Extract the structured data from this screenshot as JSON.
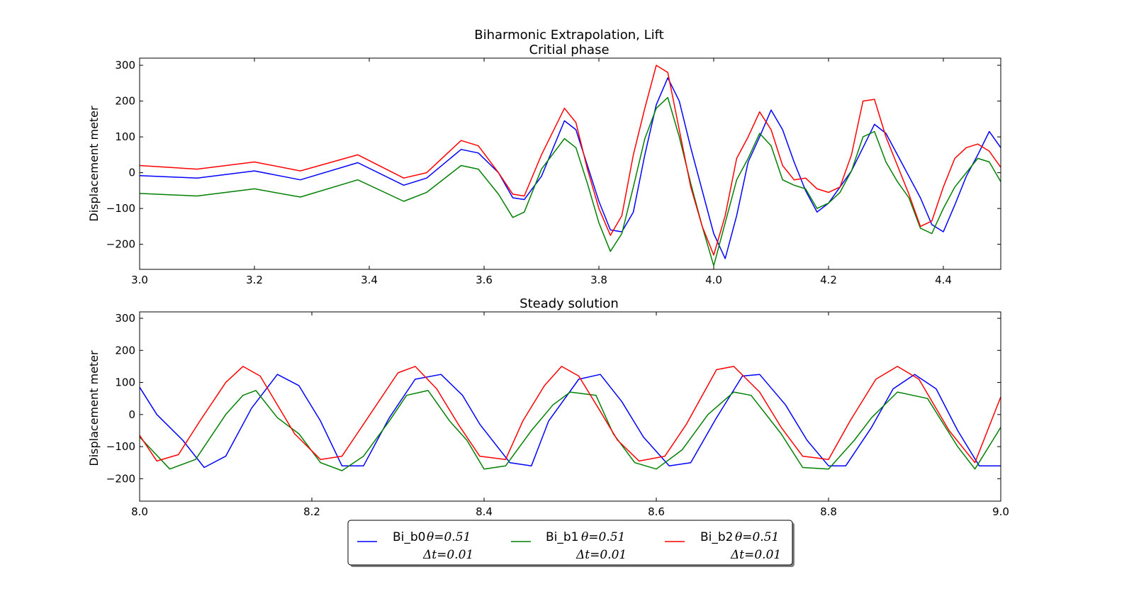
{
  "suptitle": "Biharmonic Extrapolation, Lift",
  "colors": {
    "Bi_b0": "#0000ff",
    "Bi_b1": "#008000",
    "Bi_b2": "#ff0000"
  },
  "legend": {
    "placement": "bottom-center",
    "entries": [
      {
        "label": "Bi_b0",
        "math": "θ=0.51",
        "dt": "Δt=0.01"
      },
      {
        "label": "Bi_b1",
        "math": "θ=0.51",
        "dt": "Δt=0.01"
      },
      {
        "label": "Bi_b2",
        "math": "θ=0.51",
        "dt": "Δt=0.01"
      }
    ]
  },
  "chart_data": [
    {
      "type": "line",
      "title": "Critial phase",
      "xlabel": "",
      "ylabel": "Displacement meter",
      "xlim": [
        3.0,
        4.5
      ],
      "ylim": [
        -270,
        320
      ],
      "xticks": [
        "3.0",
        "3.2",
        "3.4",
        "3.6",
        "3.8",
        "4.0",
        "4.2",
        "4.4"
      ],
      "yticks": [
        "300",
        "200",
        "100",
        "0",
        "−100",
        "−200"
      ],
      "grid": false,
      "series": [
        {
          "name": "Bi_b0",
          "x": [
            3.0,
            3.1,
            3.2,
            3.28,
            3.38,
            3.46,
            3.5,
            3.56,
            3.59,
            3.625,
            3.65,
            3.67,
            3.7,
            3.74,
            3.76,
            3.78,
            3.8,
            3.82,
            3.84,
            3.86,
            3.88,
            3.9,
            3.92,
            3.94,
            3.96,
            3.98,
            4.0,
            4.02,
            4.04,
            4.06,
            4.08,
            4.1,
            4.12,
            4.14,
            4.16,
            4.18,
            4.2,
            4.22,
            4.24,
            4.26,
            4.28,
            4.3,
            4.32,
            4.34,
            4.36,
            4.38,
            4.4,
            4.42,
            4.44,
            4.46,
            4.48,
            4.5
          ],
          "y": [
            -8,
            -15,
            5,
            -20,
            28,
            -35,
            -15,
            65,
            55,
            0,
            -70,
            -75,
            -10,
            145,
            120,
            20,
            -80,
            -160,
            -165,
            -110,
            50,
            190,
            265,
            200,
            70,
            -50,
            -170,
            -240,
            -120,
            30,
            100,
            175,
            120,
            30,
            -50,
            -110,
            -85,
            -40,
            5,
            70,
            135,
            110,
            50,
            -10,
            -70,
            -145,
            -165,
            -90,
            -10,
            50,
            115,
            70
          ]
        },
        {
          "name": "Bi_b1",
          "x": [
            3.0,
            3.1,
            3.2,
            3.28,
            3.38,
            3.46,
            3.5,
            3.56,
            3.59,
            3.625,
            3.65,
            3.67,
            3.7,
            3.74,
            3.76,
            3.78,
            3.8,
            3.82,
            3.84,
            3.86,
            3.88,
            3.9,
            3.92,
            3.94,
            3.96,
            3.98,
            4.0,
            4.02,
            4.04,
            4.06,
            4.08,
            4.1,
            4.12,
            4.14,
            4.16,
            4.18,
            4.2,
            4.22,
            4.24,
            4.26,
            4.28,
            4.3,
            4.32,
            4.34,
            4.36,
            4.38,
            4.4,
            4.42,
            4.44,
            4.46,
            4.48,
            4.5
          ],
          "y": [
            -58,
            -65,
            -45,
            -68,
            -20,
            -80,
            -55,
            20,
            10,
            -60,
            -125,
            -110,
            10,
            95,
            70,
            -30,
            -140,
            -220,
            -170,
            -40,
            95,
            180,
            210,
            100,
            -30,
            -150,
            -260,
            -140,
            -20,
            40,
            110,
            75,
            -20,
            -35,
            -45,
            -100,
            -85,
            -55,
            5,
            100,
            115,
            30,
            -25,
            -70,
            -155,
            -170,
            -100,
            -40,
            0,
            40,
            30,
            -25
          ]
        },
        {
          "name": "Bi_b2",
          "x": [
            3.0,
            3.1,
            3.2,
            3.28,
            3.38,
            3.46,
            3.5,
            3.56,
            3.59,
            3.625,
            3.65,
            3.67,
            3.7,
            3.74,
            3.76,
            3.78,
            3.8,
            3.82,
            3.84,
            3.86,
            3.88,
            3.9,
            3.92,
            3.94,
            3.96,
            3.98,
            4.0,
            4.02,
            4.04,
            4.06,
            4.08,
            4.1,
            4.12,
            4.14,
            4.16,
            4.18,
            4.2,
            4.22,
            4.24,
            4.26,
            4.28,
            4.3,
            4.32,
            4.34,
            4.36,
            4.38,
            4.4,
            4.42,
            4.44,
            4.46,
            4.48,
            4.5
          ],
          "y": [
            20,
            10,
            30,
            5,
            50,
            -15,
            0,
            90,
            75,
            0,
            -60,
            -65,
            50,
            180,
            140,
            10,
            -100,
            -175,
            -120,
            50,
            180,
            300,
            280,
            120,
            -40,
            -150,
            -230,
            -120,
            40,
            100,
            170,
            120,
            20,
            -20,
            -15,
            -45,
            -55,
            -40,
            50,
            200,
            205,
            100,
            20,
            -60,
            -150,
            -135,
            -40,
            40,
            70,
            80,
            60,
            15
          ]
        }
      ]
    },
    {
      "type": "line",
      "title": "Steady solution",
      "xlabel": "",
      "ylabel": "Displacement meter",
      "xlim": [
        8.0,
        9.0
      ],
      "ylim": [
        -270,
        320
      ],
      "xticks": [
        "8.0",
        "8.2",
        "8.4",
        "8.6",
        "8.8",
        "9.0"
      ],
      "yticks": [
        "300",
        "200",
        "100",
        "0",
        "−100",
        "−200"
      ],
      "grid": false,
      "series": [
        {
          "name": "Bi_b0",
          "period": 0.183,
          "x": [
            8.0,
            8.02,
            8.05,
            8.075,
            8.1,
            8.13,
            8.16,
            8.185,
            8.21,
            8.235,
            8.26,
            8.29,
            8.32,
            8.35,
            8.375,
            8.395,
            8.43,
            8.455,
            8.475,
            8.51,
            8.535,
            8.56,
            8.585,
            8.615,
            8.64,
            8.67,
            8.7,
            8.72,
            8.75,
            8.775,
            8.8,
            8.82,
            8.85,
            8.875,
            8.9,
            8.925,
            8.95,
            8.975,
            9.0
          ],
          "y": [
            85,
            0,
            -80,
            -165,
            -130,
            20,
            125,
            90,
            -20,
            -160,
            -160,
            -10,
            110,
            125,
            60,
            -30,
            -150,
            -160,
            -20,
            110,
            125,
            40,
            -70,
            -160,
            -150,
            -10,
            120,
            125,
            30,
            -80,
            -160,
            -160,
            -40,
            80,
            125,
            80,
            -50,
            -160,
            -160
          ]
        },
        {
          "name": "Bi_b1",
          "x": [
            8.0,
            8.035,
            8.065,
            8.1,
            8.12,
            8.135,
            8.16,
            8.185,
            8.21,
            8.235,
            8.26,
            8.29,
            8.31,
            8.335,
            8.36,
            8.38,
            8.4,
            8.425,
            8.455,
            8.48,
            8.5,
            8.53,
            8.55,
            8.575,
            8.6,
            8.63,
            8.66,
            8.69,
            8.71,
            8.745,
            8.77,
            8.8,
            8.83,
            8.85,
            8.88,
            8.915,
            8.95,
            8.97,
            9.0
          ],
          "y": [
            -70,
            -170,
            -140,
            0,
            60,
            75,
            -10,
            -60,
            -150,
            -175,
            -130,
            -20,
            60,
            75,
            -20,
            -80,
            -170,
            -160,
            -50,
            30,
            70,
            60,
            -60,
            -150,
            -170,
            -110,
            0,
            70,
            60,
            -60,
            -165,
            -170,
            -80,
            -10,
            70,
            50,
            -100,
            -170,
            -40
          ]
        },
        {
          "name": "Bi_b2",
          "x": [
            8.0,
            8.02,
            8.045,
            8.07,
            8.1,
            8.12,
            8.14,
            8.16,
            8.18,
            8.21,
            8.235,
            8.26,
            8.3,
            8.32,
            8.345,
            8.37,
            8.395,
            8.425,
            8.445,
            8.47,
            8.49,
            8.51,
            8.535,
            8.555,
            8.58,
            8.61,
            8.635,
            8.67,
            8.69,
            8.72,
            8.745,
            8.77,
            8.8,
            8.825,
            8.855,
            8.88,
            8.905,
            8.94,
            8.97,
            9.0
          ],
          "y": [
            -65,
            -145,
            -125,
            -20,
            100,
            150,
            120,
            30,
            -60,
            -140,
            -130,
            -30,
            130,
            150,
            80,
            -30,
            -130,
            -140,
            -20,
            90,
            150,
            120,
            10,
            -80,
            -145,
            -130,
            -30,
            140,
            150,
            70,
            -40,
            -130,
            -140,
            -20,
            110,
            150,
            110,
            -50,
            -150,
            55
          ]
        }
      ]
    }
  ]
}
